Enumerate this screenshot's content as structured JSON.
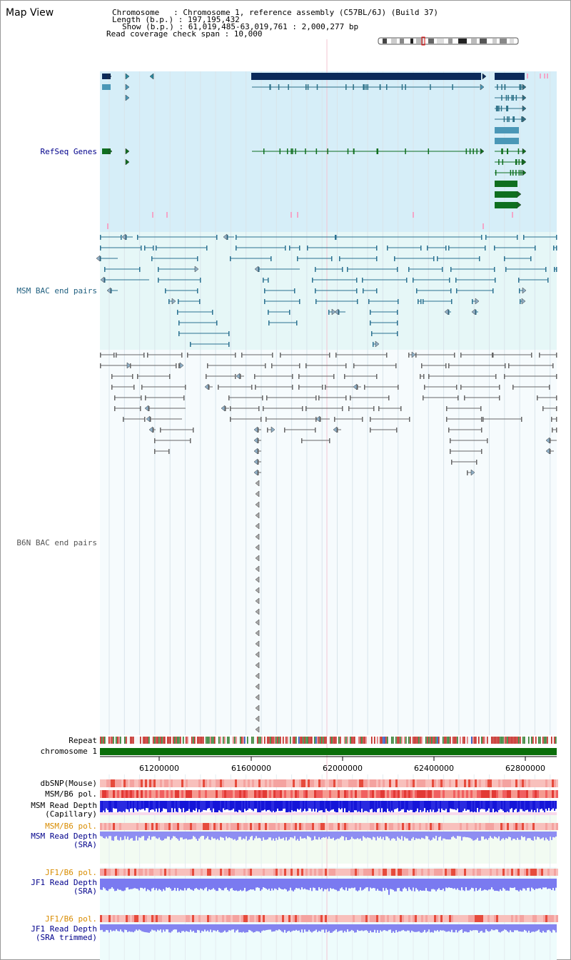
{
  "title": "Map View",
  "info": {
    "chromosome": "Chromosome   : Chromosome 1, reference assembly (C57BL/6J) (Build 37)",
    "length": "Length (b.p.) : 197,195,432",
    "show": "Show (b.p.) : 61,019,485-63,019,761 : 2,000,277 bp",
    "coverage": "Read coverage check span : 10,000"
  },
  "tracks": {
    "refseq": "RefSeq Genes",
    "msm_bac": "MSM BAC end pairs",
    "b6n_bac": "B6N BAC end pairs",
    "repeat": "Repeat",
    "chromosome": "chromosome 1",
    "dbsnp": "dbSNP(Mouse)",
    "msm_b6_pol": "MSM/B6 pol.",
    "msm_depth_cap_1": "MSM Read Depth",
    "msm_depth_cap_2": "(Capillary)",
    "msm_b6_pol_2": "MSM/B6 pol.",
    "msm_depth_sra_1": "MSM Read Depth",
    "msm_depth_sra_2": "(SRA)",
    "jf1_b6_pol": "JF1/B6 pol.",
    "jf1_depth_sra_1": "JF1 Read Depth",
    "jf1_depth_sra_2": "(SRA)",
    "jf1_b6_pol_2": "JF1/B6 pol.",
    "jf1_depth_trim_1": "JF1 Read Depth",
    "jf1_depth_trim_2": "(SRA trimmed)"
  },
  "axis_ticks": [
    "61200000",
    "61600000",
    "62000000",
    "62400000",
    "62800000"
  ],
  "colors": {
    "gene_blue_dark": "#0a2a5a",
    "gene_blue": "#2a6f86",
    "gene_green": "#0f6f1f",
    "refseq_bg": "#d6eef8",
    "msm_bg": "#e6f7f7",
    "b6n_bg": "#f2fafd",
    "label_blue": "#00008b",
    "label_orange": "#d98c00",
    "pol_red": "#e8403a",
    "depth_blue": "#1010e0",
    "chrom_green": "#0a6e0a"
  }
}
